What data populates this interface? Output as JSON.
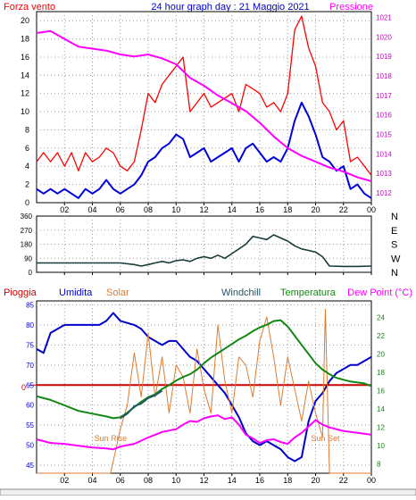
{
  "header": {
    "left_label": "Forza vento",
    "title": "24 hour graph day : 21 Maggio 2021",
    "right_label": "Pressione"
  },
  "colors": {
    "wind_max": "#ff0000",
    "wind_avg": "#0000dd",
    "pressure": "#ff00ff",
    "direction": "#1a3a3a",
    "rain": "#cc0000",
    "humidity": "#0000cc",
    "solar": "#e07a30",
    "windchill": "#225566",
    "temperature": "#118811",
    "dewpoint": "#ff00ff",
    "axis_left1": "#000000",
    "axis_right1": "#cc00cc",
    "axis_left3": "#0000cc",
    "axis_right3": "#118811"
  },
  "chart_data": [
    {
      "type": "line",
      "name": "wind-pressure",
      "x_ticks": [
        "02",
        "04",
        "06",
        "08",
        "10",
        "12",
        "14",
        "16",
        "18",
        "20",
        "22",
        "00"
      ],
      "xlim": [
        0,
        24
      ],
      "y_left_ticks": [
        0,
        2,
        4,
        6,
        8,
        10,
        12,
        14,
        16,
        18,
        20
      ],
      "ylim_left": [
        0,
        21
      ],
      "y_right_ticks": [
        1012,
        1013,
        1014,
        1015,
        1016,
        1017,
        1018,
        1019,
        1020,
        1021
      ],
      "ylim_right": [
        1011.5,
        1021.3
      ],
      "series": [
        {
          "key": "wind_max",
          "x": [
            0,
            0.5,
            1,
            1.5,
            2,
            2.5,
            3,
            3.5,
            4,
            4.5,
            5,
            5.5,
            6,
            6.5,
            7,
            7.5,
            8,
            8.5,
            9,
            9.5,
            10,
            10.5,
            11,
            11.5,
            12,
            12.5,
            13,
            13.5,
            14,
            14.5,
            15,
            15.5,
            16,
            16.5,
            17,
            17.5,
            18,
            18.5,
            19,
            19.5,
            20,
            20.5,
            21,
            21.5,
            22,
            22.5,
            23,
            23.5,
            24
          ],
          "values": [
            4.5,
            5.5,
            4.5,
            5.5,
            4,
            5.5,
            3.5,
            5.5,
            4.5,
            5,
            6,
            5.5,
            4,
            3.5,
            4.5,
            8,
            12,
            11,
            13,
            14,
            15,
            16,
            10,
            11,
            12,
            10.5,
            11,
            11.5,
            12,
            10,
            13,
            12.5,
            12,
            10.5,
            11,
            10,
            12,
            19,
            20.5,
            17,
            15,
            11,
            10,
            8,
            9,
            4.5,
            5,
            4,
            3
          ]
        },
        {
          "key": "wind_avg",
          "x": [
            0,
            0.5,
            1,
            1.5,
            2,
            2.5,
            3,
            3.5,
            4,
            4.5,
            5,
            5.5,
            6,
            6.5,
            7,
            7.5,
            8,
            8.5,
            9,
            9.5,
            10,
            10.5,
            11,
            11.5,
            12,
            12.5,
            13,
            13.5,
            14,
            14.5,
            15,
            15.5,
            16,
            16.5,
            17,
            17.5,
            18,
            18.5,
            19,
            19.5,
            20,
            20.5,
            21,
            21.5,
            22,
            22.5,
            23,
            23.5,
            24
          ],
          "values": [
            1.5,
            1,
            1.5,
            1,
            1.5,
            1,
            0.5,
            1.5,
            1,
            1.5,
            2.5,
            1.5,
            1,
            1.5,
            2,
            3,
            4.5,
            5,
            6,
            6.5,
            7.5,
            7,
            5,
            5.5,
            6,
            4.5,
            5,
            5.5,
            6,
            4.5,
            6,
            6.5,
            5.5,
            4.5,
            5,
            4.5,
            6,
            9,
            11,
            9.5,
            7.5,
            5,
            4.5,
            3.5,
            4,
            1.5,
            2,
            1,
            0.5
          ]
        },
        {
          "key": "pressure",
          "x": [
            0,
            1,
            2,
            3,
            4,
            5,
            6,
            7,
            8,
            9,
            10,
            11,
            12,
            13,
            14,
            15,
            16,
            17,
            18,
            19,
            20,
            21,
            22,
            23,
            24
          ],
          "values": [
            1020.2,
            1020.3,
            1019.9,
            1019.5,
            1019.4,
            1019.3,
            1019.1,
            1019.0,
            1019.1,
            1018.9,
            1018.6,
            1017.9,
            1017.5,
            1017.0,
            1016.6,
            1016.2,
            1015.6,
            1014.9,
            1014.3,
            1013.9,
            1013.6,
            1013.3,
            1013.1,
            1012.8,
            1012.6
          ]
        }
      ]
    },
    {
      "type": "line",
      "name": "wind-direction",
      "xlim": [
        0,
        24
      ],
      "y_left_ticks": [
        0,
        90,
        180,
        270,
        360
      ],
      "ylim": [
        0,
        360
      ],
      "y_right_labels": [
        "N",
        "W",
        "S",
        "E",
        "N"
      ],
      "series": [
        {
          "key": "direction",
          "x": [
            0,
            1,
            2,
            3,
            4,
            5,
            6,
            7,
            7.5,
            8,
            8.5,
            9,
            9.5,
            10,
            10.5,
            11,
            11.5,
            12,
            12.5,
            13,
            13.5,
            14,
            14.5,
            15,
            15.5,
            16,
            16.5,
            17,
            17.5,
            18,
            18.5,
            19,
            19.5,
            20,
            20.5,
            21,
            22,
            23,
            24
          ],
          "values": [
            60,
            60,
            60,
            60,
            60,
            60,
            60,
            50,
            40,
            50,
            60,
            70,
            60,
            75,
            80,
            70,
            90,
            100,
            90,
            110,
            90,
            120,
            150,
            180,
            230,
            220,
            210,
            240,
            220,
            200,
            170,
            150,
            140,
            130,
            100,
            40,
            38,
            38,
            40
          ]
        }
      ]
    },
    {
      "type": "line",
      "name": "weather",
      "x_ticks": [
        "02",
        "04",
        "06",
        "08",
        "10",
        "12",
        "14",
        "16",
        "18",
        "20",
        "22",
        "00"
      ],
      "xlim": [
        0,
        24
      ],
      "y_left_ticks": [
        45,
        50,
        55,
        60,
        65,
        70,
        75,
        80,
        85
      ],
      "ylim_left": [
        43,
        86
      ],
      "y_right_ticks": [
        8,
        10,
        12,
        14,
        16,
        18,
        20,
        22,
        24
      ],
      "ylim_right": [
        7,
        25.8
      ],
      "rain_zero_label": "0",
      "rain_level": 65,
      "sunrise_label": "Sun Rise",
      "sunset_label": "Sun Set",
      "sunrise_x": 5.5,
      "sunset_x": 20.7,
      "series_labels": {
        "rain": "Pioggia",
        "humidity": "Umidita",
        "solar": "Solar",
        "windchill": "Windchill",
        "temperature": "Temperatura",
        "dewpoint": "Dew Point (°C)"
      },
      "series": [
        {
          "key": "humidity",
          "axis": "left",
          "x": [
            0,
            0.5,
            1,
            2,
            3,
            4,
            4.5,
            5,
            5.5,
            6,
            7,
            7.5,
            8,
            8.5,
            9,
            9.5,
            10,
            10.5,
            11,
            11.5,
            12,
            12.5,
            13,
            13.5,
            14,
            14.5,
            15,
            15.5,
            16,
            16.5,
            17,
            17.5,
            18,
            18.5,
            19,
            19.5,
            20,
            20.5,
            21,
            21.5,
            22,
            22.5,
            23,
            23.5,
            24
          ],
          "values": [
            74,
            73,
            78,
            80,
            80,
            80,
            80,
            81,
            83,
            81,
            80,
            79,
            77,
            76,
            75,
            76,
            76,
            74,
            72,
            71,
            69,
            67,
            65,
            63,
            60,
            57,
            53,
            51,
            50,
            51,
            50,
            49,
            47,
            46,
            47,
            56,
            61,
            63,
            66,
            68,
            69,
            70,
            70,
            71,
            72
          ]
        },
        {
          "key": "solar",
          "axis": "left",
          "x": [
            0,
            5.3,
            5.5,
            6,
            6.5,
            7,
            7.5,
            8,
            8.5,
            9,
            9.5,
            10,
            10.5,
            11,
            11.5,
            12,
            12.5,
            13,
            13.5,
            14,
            14.5,
            15,
            15.5,
            16,
            16.5,
            17,
            17.5,
            18,
            18.5,
            19,
            19.5,
            20,
            20.5,
            20.7,
            21,
            24
          ],
          "values": [
            43,
            43,
            46,
            54,
            60,
            73,
            62,
            78,
            62,
            72,
            58,
            70,
            67,
            58,
            74,
            64,
            58,
            80,
            66,
            58,
            72,
            70,
            62,
            76,
            82,
            72,
            60,
            72,
            64,
            56,
            66,
            58,
            52,
            84,
            43,
            43
          ]
        },
        {
          "key": "temperature",
          "axis": "right",
          "x": [
            0,
            1,
            2,
            3,
            4,
            5,
            5.5,
            6,
            6.5,
            7,
            7.5,
            8,
            8.5,
            9,
            9.5,
            10,
            10.5,
            11,
            11.5,
            12,
            12.5,
            13,
            13.5,
            14,
            14.5,
            15,
            15.5,
            16,
            16.5,
            17,
            17.5,
            18,
            18.5,
            19,
            19.5,
            20,
            20.5,
            21,
            21.5,
            22,
            22.5,
            23,
            23.5,
            24
          ],
          "values": [
            15.4,
            15,
            14.4,
            13.8,
            13.5,
            13.2,
            13,
            13.1,
            13.6,
            14.2,
            14.8,
            15.3,
            15.6,
            16.2,
            16.6,
            17.1,
            17.5,
            17.8,
            18.3,
            19,
            19.6,
            20.1,
            20.6,
            21.1,
            21.6,
            22,
            22.5,
            22.9,
            23.2,
            23.6,
            23.7,
            23,
            22,
            21,
            20,
            19,
            18.3,
            17.8,
            17.4,
            17.2,
            17,
            16.9,
            16.8,
            16.5
          ]
        },
        {
          "key": "windchill",
          "axis": "right",
          "x": [
            0,
            5.5,
            6,
            6.5,
            7,
            7.5,
            8,
            8.5,
            9,
            24
          ],
          "values": [
            null,
            null,
            13,
            13.5,
            14.3,
            14.6,
            15.2,
            15.5,
            16,
            null
          ]
        },
        {
          "key": "dewpoint",
          "axis": "right",
          "x": [
            0,
            1,
            2,
            3,
            4,
            5,
            5.5,
            6,
            7,
            8,
            9,
            10,
            10.5,
            11,
            11.5,
            12,
            12.5,
            13,
            13.5,
            14,
            14.5,
            15,
            15.5,
            16,
            16.5,
            17,
            17.5,
            18,
            18.5,
            19,
            19.5,
            20,
            20.5,
            21,
            22,
            23,
            24
          ],
          "values": [
            10.7,
            10.3,
            10.2,
            10,
            9.8,
            9.7,
            9.6,
            9.9,
            10.2,
            10.9,
            11.5,
            11.8,
            12.3,
            12.7,
            12.6,
            13,
            13.2,
            13.3,
            12.9,
            13.1,
            12.3,
            11.2,
            10.8,
            10.3,
            10.6,
            10.7,
            10.4,
            10.2,
            10.9,
            11.4,
            12.1,
            12.8,
            12.3,
            12,
            11.6,
            11.4,
            11.2
          ]
        }
      ]
    }
  ]
}
